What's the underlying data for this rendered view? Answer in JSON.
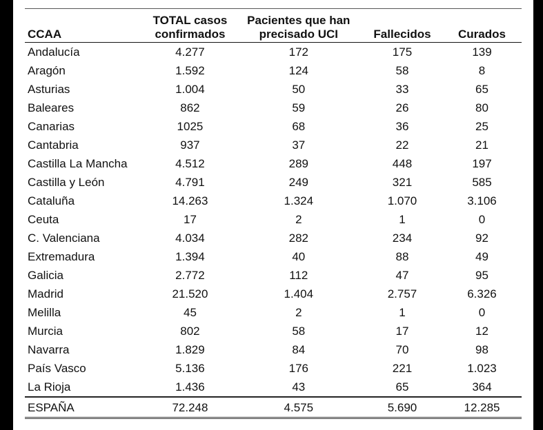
{
  "table": {
    "headers": [
      {
        "line1": "",
        "line2": "CCAA"
      },
      {
        "line1": "TOTAL casos",
        "line2": "confirmados"
      },
      {
        "line1": "Pacientes que han",
        "line2": "precisado UCI"
      },
      {
        "line1": "",
        "line2": "Fallecidos"
      },
      {
        "line1": "",
        "line2": "Curados"
      }
    ],
    "rows": [
      [
        "Andalucía",
        "4.277",
        "172",
        "175",
        "139"
      ],
      [
        "Aragón",
        "1.592",
        "124",
        "58",
        "8"
      ],
      [
        "Asturias",
        "1.004",
        "50",
        "33",
        "65"
      ],
      [
        "Baleares",
        "862",
        "59",
        "26",
        "80"
      ],
      [
        "Canarias",
        "1025",
        "68",
        "36",
        "25"
      ],
      [
        "Cantabria",
        "937",
        "37",
        "22",
        "21"
      ],
      [
        "Castilla La Mancha",
        "4.512",
        "289",
        "448",
        "197"
      ],
      [
        "Castilla y León",
        "4.791",
        "249",
        "321",
        "585"
      ],
      [
        "Cataluña",
        "14.263",
        "1.324",
        "1.070",
        "3.106"
      ],
      [
        "Ceuta",
        "17",
        "2",
        "1",
        "0"
      ],
      [
        "C. Valenciana",
        "4.034",
        "282",
        "234",
        "92"
      ],
      [
        "Extremadura",
        "1.394",
        "40",
        "88",
        "49"
      ],
      [
        "Galicia",
        "2.772",
        "112",
        "47",
        "95"
      ],
      [
        "Madrid",
        "21.520",
        "1.404",
        "2.757",
        "6.326"
      ],
      [
        "Melilla",
        "45",
        "2",
        "1",
        "0"
      ],
      [
        "Murcia",
        "802",
        "58",
        "17",
        "12"
      ],
      [
        "Navarra",
        "1.829",
        "84",
        "70",
        "98"
      ],
      [
        "País Vasco",
        "5.136",
        "176",
        "221",
        "1.023"
      ],
      [
        "La Rioja",
        "1.436",
        "43",
        "65",
        "364"
      ]
    ],
    "total": [
      "ESPAÑA",
      "72.248",
      "4.575",
      "5.690",
      "12.285"
    ]
  }
}
